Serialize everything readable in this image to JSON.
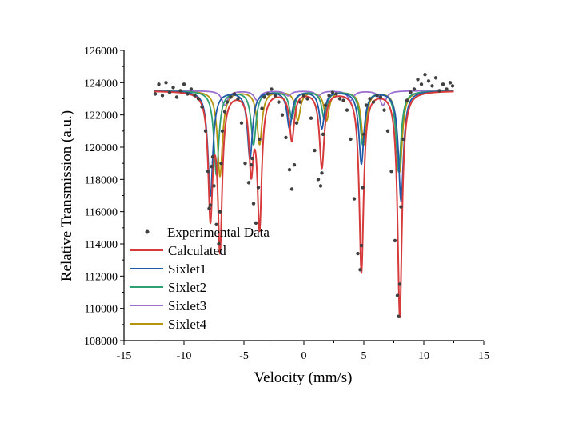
{
  "chart_data": {
    "type": "line",
    "title": "",
    "xlabel": "Velocity (mm/s)",
    "ylabel": "Relative Transmission (a.u.)",
    "xlim": [
      -15,
      15
    ],
    "ylim": [
      108000,
      126000
    ],
    "xticks": [
      -15,
      -10,
      -5,
      0,
      5,
      10,
      15
    ],
    "yticks": [
      108000,
      110000,
      112000,
      114000,
      116000,
      118000,
      120000,
      122000,
      124000,
      126000
    ],
    "xtick_labels": [
      "-15",
      "-10",
      "-5",
      "0",
      "5",
      "10",
      "15"
    ],
    "ytick_labels": [
      "108000",
      "110000",
      "112000",
      "114000",
      "116000",
      "118000",
      "120000",
      "122000",
      "124000",
      "126000"
    ],
    "legend_position": "lower-left",
    "baseline": 123500,
    "x_range": [
      -12.5,
      12.5
    ],
    "series": [
      {
        "name": "Experimental Data",
        "style": "scatter",
        "color": "#404040",
        "x": [
          -12.4,
          -12.1,
          -11.8,
          -11.5,
          -11.2,
          -10.9,
          -10.6,
          -10.3,
          -10.0,
          -9.7,
          -9.4,
          -9.1,
          -8.8,
          -8.5,
          -8.2,
          -8.0,
          -7.9,
          -7.8,
          -7.7,
          -7.6,
          -7.5,
          -7.3,
          -7.1,
          -7.0,
          -6.9,
          -6.8,
          -6.6,
          -6.4,
          -6.1,
          -5.8,
          -5.5,
          -5.2,
          -4.9,
          -4.6,
          -4.4,
          -4.3,
          -4.2,
          -4.0,
          -3.8,
          -3.7,
          -3.5,
          -3.3,
          -3.0,
          -2.7,
          -2.4,
          -2.1,
          -1.8,
          -1.5,
          -1.2,
          -1.0,
          -0.8,
          -0.6,
          -0.3,
          0.0,
          0.3,
          0.6,
          0.9,
          1.2,
          1.4,
          1.5,
          1.6,
          1.8,
          2.1,
          2.4,
          2.7,
          3.0,
          3.3,
          3.6,
          3.9,
          4.2,
          4.5,
          4.7,
          4.8,
          4.9,
          5.0,
          5.2,
          5.5,
          5.8,
          6.1,
          6.4,
          6.7,
          7.0,
          7.3,
          7.6,
          7.8,
          7.9,
          8.0,
          8.1,
          8.3,
          8.6,
          8.9,
          9.2,
          9.5,
          9.8,
          10.1,
          10.4,
          10.7,
          11.0,
          11.3,
          11.6,
          11.9,
          12.2,
          12.4
        ],
        "y": [
          123300,
          123900,
          123200,
          124000,
          123400,
          123700,
          123100,
          123500,
          123900,
          123300,
          123600,
          123200,
          123000,
          122500,
          121000,
          118500,
          116200,
          116400,
          118800,
          119400,
          117600,
          115200,
          114000,
          116000,
          119000,
          121000,
          122200,
          122800,
          123100,
          123300,
          123000,
          121500,
          119000,
          117800,
          118900,
          119300,
          116500,
          115300,
          117500,
          120500,
          122400,
          123100,
          123300,
          123600,
          123200,
          122800,
          122000,
          120600,
          118600,
          117400,
          118900,
          121500,
          122800,
          123200,
          123000,
          121800,
          119800,
          118000,
          117600,
          118400,
          120800,
          122600,
          123200,
          123400,
          123300,
          123000,
          122900,
          122300,
          120500,
          116800,
          113400,
          112400,
          113900,
          117500,
          120800,
          122600,
          123000,
          122800,
          123200,
          123100,
          122300,
          121000,
          118500,
          114200,
          110800,
          109500,
          111500,
          116300,
          120500,
          122900,
          123400,
          123600,
          124200,
          123900,
          124500,
          124100,
          123800,
          124300,
          123500,
          123900,
          123600,
          124000,
          123800
        ]
      },
      {
        "name": "Calculated",
        "style": "line",
        "color": "#d73a3a",
        "lines": [
          {
            "position": -7.8,
            "depth": 7500,
            "width": 0.22
          },
          {
            "position": -7.0,
            "depth": 9500,
            "width": 0.22
          },
          {
            "position": -4.4,
            "depth": 4600,
            "width": 0.22
          },
          {
            "position": -3.7,
            "depth": 8200,
            "width": 0.22
          },
          {
            "position": -1.0,
            "depth": 3000,
            "width": 0.24
          },
          {
            "position": 1.5,
            "depth": 4700,
            "width": 0.24
          },
          {
            "position": 4.8,
            "depth": 11200,
            "width": 0.22
          },
          {
            "position": 8.0,
            "depth": 14000,
            "width": 0.22
          }
        ]
      },
      {
        "name": "Sixlet1",
        "style": "line",
        "color": "#1f5aa8",
        "lines": [
          {
            "position": -7.8,
            "depth": 6500,
            "width": 0.25
          },
          {
            "position": -4.5,
            "depth": 4200,
            "width": 0.25
          },
          {
            "position": -1.2,
            "depth": 2300,
            "width": 0.25
          },
          {
            "position": 1.5,
            "depth": 2300,
            "width": 0.25
          },
          {
            "position": 4.8,
            "depth": 4500,
            "width": 0.25
          },
          {
            "position": 8.1,
            "depth": 6800,
            "width": 0.25
          }
        ]
      },
      {
        "name": "Sixlet2",
        "style": "line",
        "color": "#2e9e73",
        "lines": [
          {
            "position": -7.3,
            "depth": 5200,
            "width": 0.25
          },
          {
            "position": -4.2,
            "depth": 3300,
            "width": 0.25
          },
          {
            "position": -1.0,
            "depth": 1700,
            "width": 0.25
          },
          {
            "position": 1.7,
            "depth": 1700,
            "width": 0.25
          },
          {
            "position": 4.9,
            "depth": 3300,
            "width": 0.25
          },
          {
            "position": 7.9,
            "depth": 5000,
            "width": 0.25
          }
        ]
      },
      {
        "name": "Sixlet3",
        "style": "line",
        "color": "#9a6fd0",
        "lines": [
          {
            "position": -6.6,
            "depth": 900,
            "width": 0.3
          },
          {
            "position": -3.9,
            "depth": 600,
            "width": 0.3
          },
          {
            "position": -1.3,
            "depth": 300,
            "width": 0.3
          },
          {
            "position": 1.2,
            "depth": 300,
            "width": 0.3
          },
          {
            "position": 3.9,
            "depth": 600,
            "width": 0.3
          },
          {
            "position": 6.6,
            "depth": 900,
            "width": 0.3
          }
        ]
      },
      {
        "name": "Sixlet4",
        "style": "line",
        "color": "#b5950e",
        "lines": [
          {
            "position": -7.0,
            "depth": 5300,
            "width": 0.25
          },
          {
            "position": -3.7,
            "depth": 3300,
            "width": 0.25
          },
          {
            "position": -0.5,
            "depth": 1800,
            "width": 0.25
          },
          {
            "position": 1.9,
            "depth": 1800,
            "width": 0.25
          },
          {
            "position": 5.0,
            "depth": 3300,
            "width": 0.25
          },
          {
            "position": 8.0,
            "depth": 5000,
            "width": 0.25
          }
        ]
      }
    ]
  }
}
